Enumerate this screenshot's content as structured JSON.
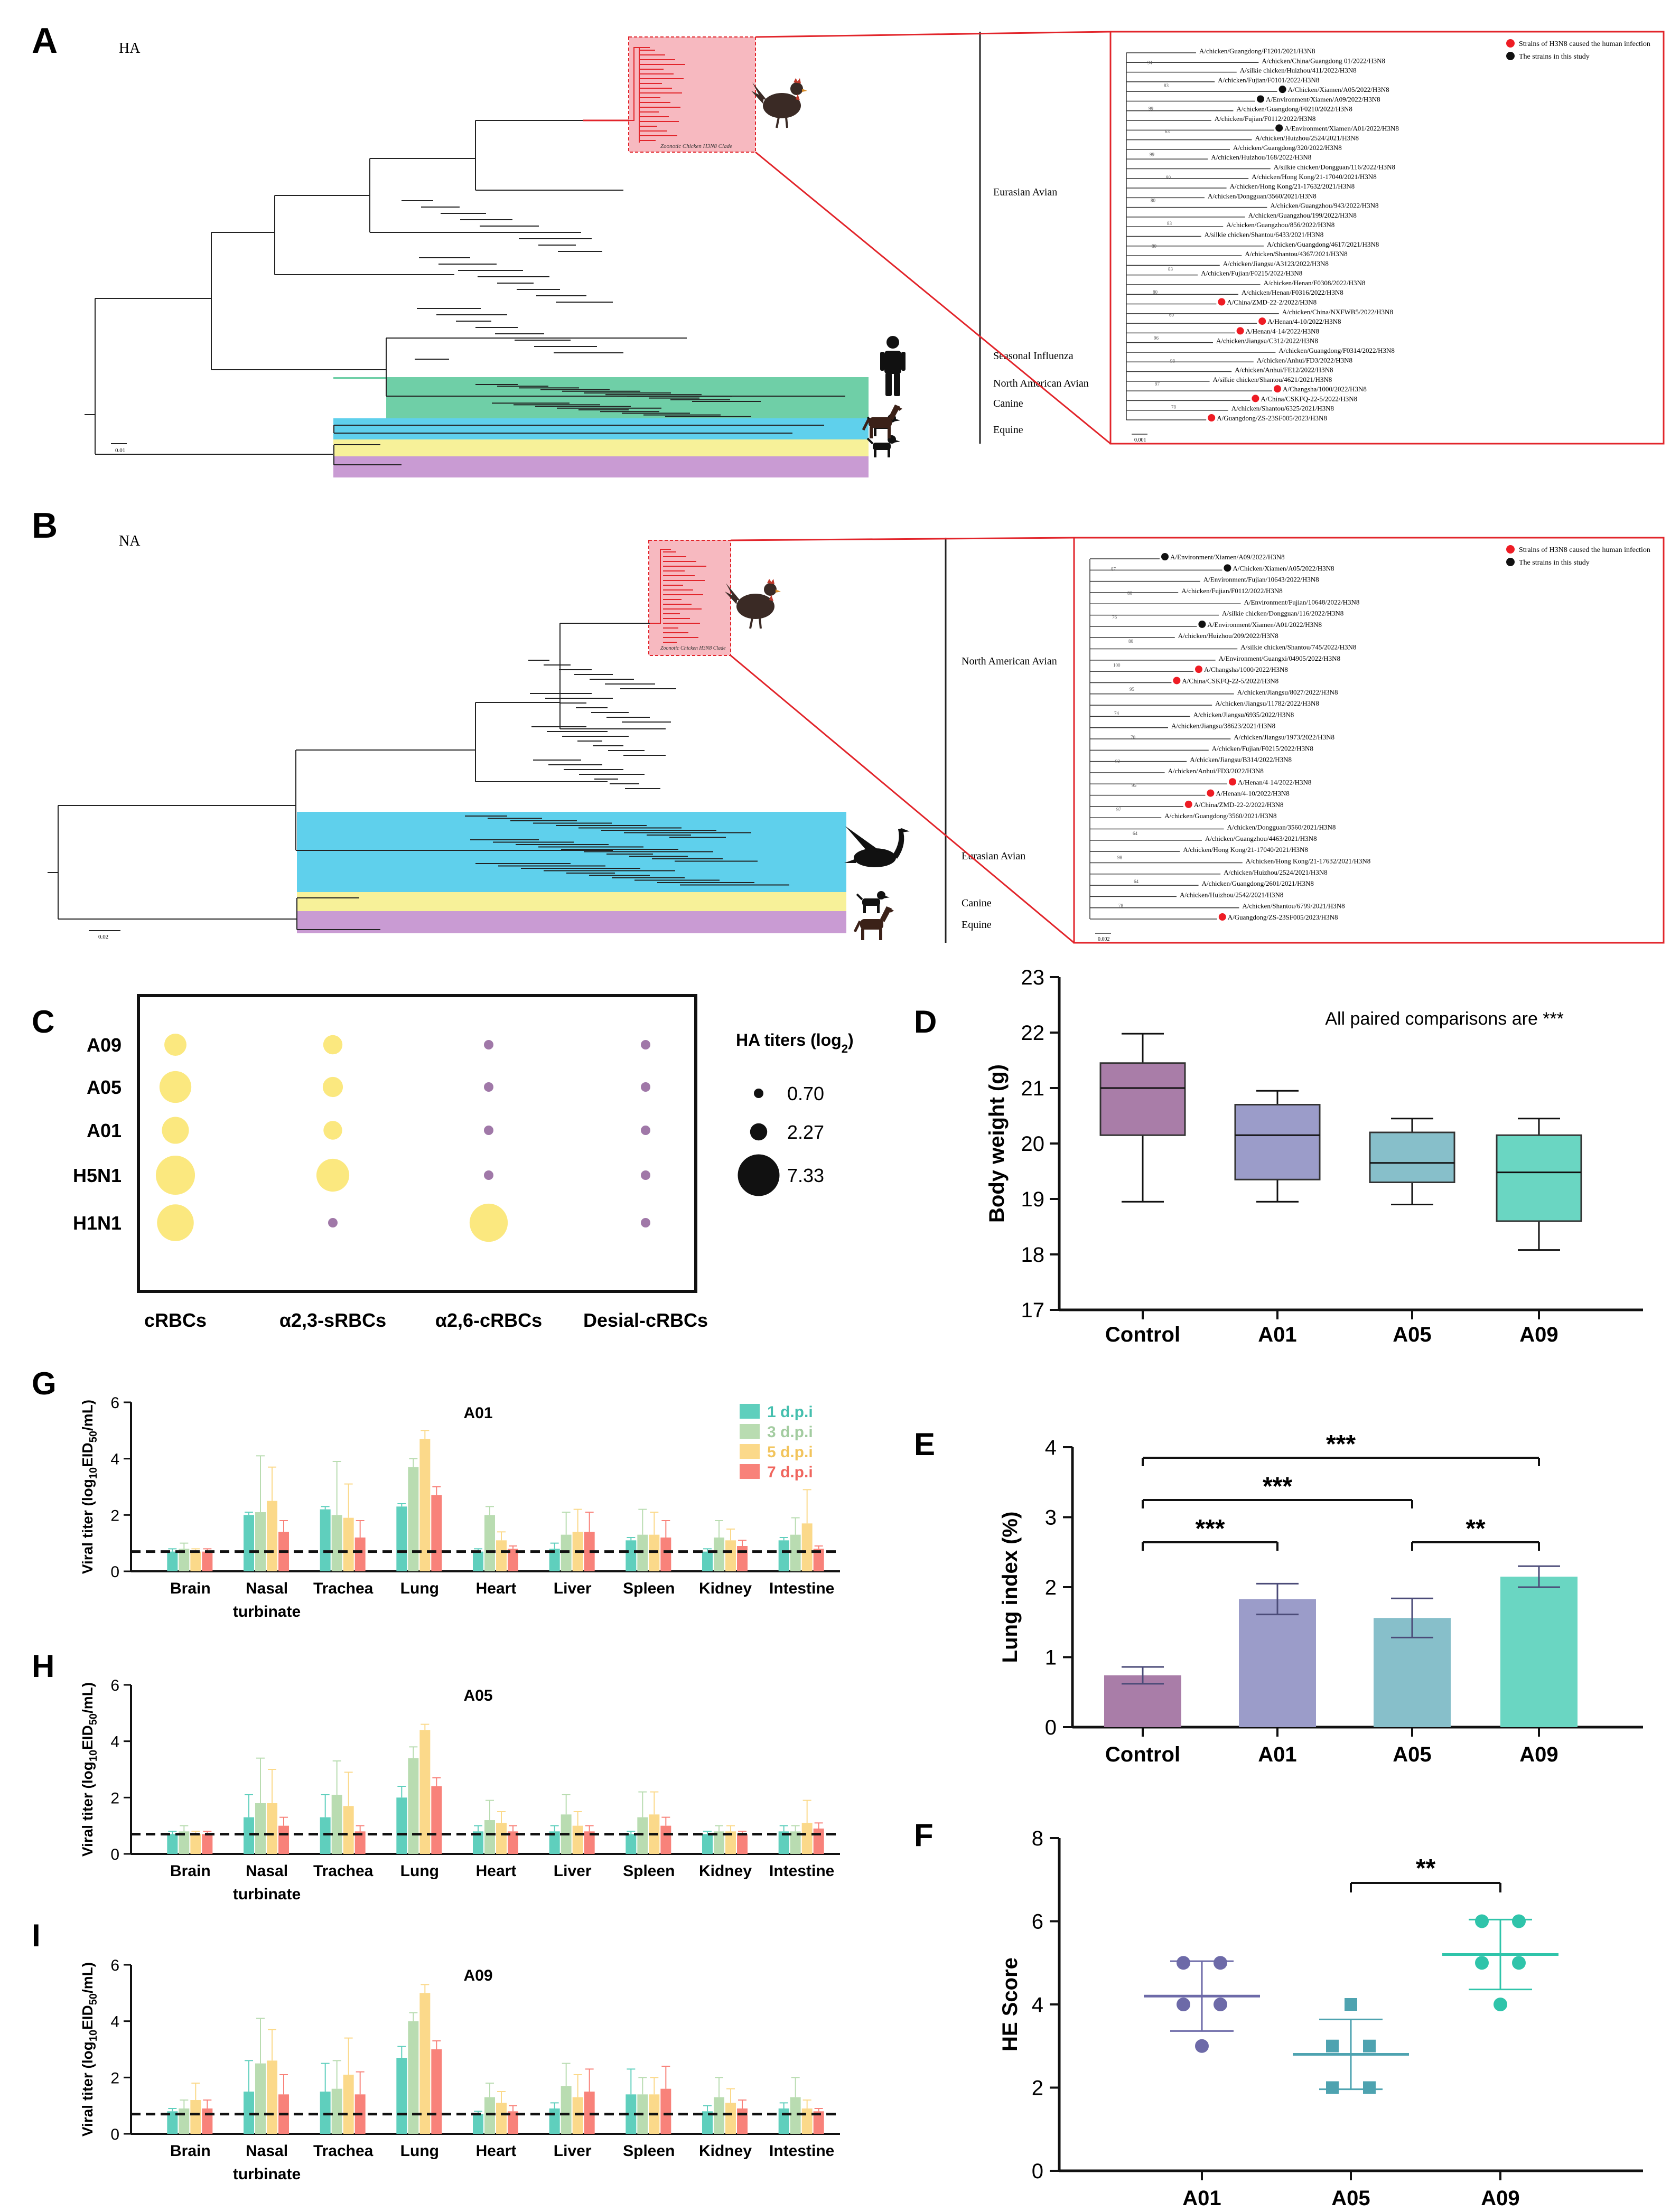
{
  "colors": {
    "avian_pink": "#f7b9c0",
    "seasonal_green": "#6fcfa7",
    "north_american_blue": "#5fd0ec",
    "canine_yellow": "#f7f199",
    "equine_purple": "#c99bd3",
    "highlight_red": "#e2252b",
    "human_dot": "#ee1c24",
    "study_dot": "#111111",
    "hemag_yellow": "#fbe87f",
    "no_hemag_purple": "#a078a8",
    "control": "#a97da8",
    "a01": "#9b9cc9",
    "a05": "#87bfca",
    "a09": "#6ad6c2",
    "dpi1": "#5fcfbd",
    "dpi3": "#b9dcb1",
    "dpi5": "#fbd98a",
    "dpi7": "#f8827a"
  },
  "panel_a": {
    "letter": "A",
    "gene": "HA",
    "clade_label": "Zoonotic Chicken H3N8 Clade",
    "scale": "0.01",
    "lineages": [
      "Eurasian Avian",
      "Seasonal Influenza",
      "North American Avian",
      "Canine",
      "Equine"
    ],
    "legend": {
      "human": "Strains of H3N8 caused the human infection",
      "study": "The strains in this study"
    },
    "inset_scale": "0.001",
    "inset_bootstraps": [
      "94",
      "83",
      "99",
      "63",
      "99",
      "80",
      "80",
      "83",
      "80",
      "83",
      "80",
      "69",
      "96",
      "98",
      "97",
      "78"
    ],
    "inset_strains": [
      {
        "name": "A/chicken/Guangdong/F1201/2021/H3N8",
        "mark": ""
      },
      {
        "name": "A/chicken/China/Guangdong 01/2022/H3N8",
        "mark": ""
      },
      {
        "name": "A/silkie chicken/Huizhou/411/2022/H3N8",
        "mark": ""
      },
      {
        "name": "A/chicken/Fujian/F0101/2022/H3N8",
        "mark": ""
      },
      {
        "name": "A/Chicken/Xiamen/A05/2022/H3N8",
        "mark": "study"
      },
      {
        "name": "A/Environment/Xiamen/A09/2022/H3N8",
        "mark": "study"
      },
      {
        "name": "A/chicken/Guangdong/F0210/2022/H3N8",
        "mark": ""
      },
      {
        "name": "A/chicken/Fujian/F0112/2022/H3N8",
        "mark": ""
      },
      {
        "name": "A/Environment/Xiamen/A01/2022/H3N8",
        "mark": "study"
      },
      {
        "name": "A/chicken/Huizhou/2524/2021/H3N8",
        "mark": ""
      },
      {
        "name": "A/chicken/Guangdong/320/2022/H3N8",
        "mark": ""
      },
      {
        "name": "A/chicken/Huizhou/168/2022/H3N8",
        "mark": ""
      },
      {
        "name": "A/silkie chicken/Dongguan/116/2022/H3N8",
        "mark": ""
      },
      {
        "name": "A/chicken/Hong Kong/21-17040/2021/H3N8",
        "mark": ""
      },
      {
        "name": "A/chicken/Hong Kong/21-17632/2021/H3N8",
        "mark": ""
      },
      {
        "name": "A/chicken/Dongguan/3560/2021/H3N8",
        "mark": ""
      },
      {
        "name": "A/chicken/Guangzhou/943/2022/H3N8",
        "mark": ""
      },
      {
        "name": "A/chicken/Guangzhou/199/2022/H3N8",
        "mark": ""
      },
      {
        "name": "A/chicken/Guangzhou/856/2022/H3N8",
        "mark": ""
      },
      {
        "name": "A/silkie chicken/Shantou/6433/2021/H3N8",
        "mark": ""
      },
      {
        "name": "A/chicken/Guangdong/4617/2021/H3N8",
        "mark": ""
      },
      {
        "name": "A/chicken/Shantou/4367/2021/H3N8",
        "mark": ""
      },
      {
        "name": "A/chicken/Jiangsu/A3123/2022/H3N8",
        "mark": ""
      },
      {
        "name": "A/chicken/Fujian/F0215/2022/H3N8",
        "mark": ""
      },
      {
        "name": "A/chicken/Henan/F0308/2022/H3N8",
        "mark": ""
      },
      {
        "name": "A/chicken/Henan/F0316/2022/H3N8",
        "mark": ""
      },
      {
        "name": "A/China/ZMD-22-2/2022/H3N8",
        "mark": "human"
      },
      {
        "name": "A/chicken/China/NXFWB5/2022/H3N8",
        "mark": ""
      },
      {
        "name": "A/Henan/4-10/2022/H3N8",
        "mark": "human"
      },
      {
        "name": "A/Henan/4-14/2022/H3N8",
        "mark": "human"
      },
      {
        "name": "A/chicken/Jiangsu/C312/2022/H3N8",
        "mark": ""
      },
      {
        "name": "A/chicken/Guangdong/F0314/2022/H3N8",
        "mark": ""
      },
      {
        "name": "A/chicken/Anhui/FD3/2022/H3N8",
        "mark": ""
      },
      {
        "name": "A/chicken/Anhui/FE12/2022/H3N8",
        "mark": ""
      },
      {
        "name": "A/silkie chicken/Shantou/4621/2021/H3N8",
        "mark": ""
      },
      {
        "name": "A/Changsha/1000/2022/H3N8",
        "mark": "human"
      },
      {
        "name": "A/China/CSKFQ-22-5/2022/H3N8",
        "mark": "human"
      },
      {
        "name": "A/chicken/Shantou/6325/2021/H3N8",
        "mark": ""
      },
      {
        "name": "A/Guangdong/ZS-23SF005/2023/H3N8",
        "mark": "human"
      }
    ]
  },
  "panel_b": {
    "letter": "B",
    "gene": "NA",
    "clade_label": "Zoonotic Chicken H3N8 Clade",
    "scale": "0.02",
    "lineages": [
      "North American Avian",
      "Eurasian Avian",
      "Canine",
      "Equine"
    ],
    "legend": {
      "human": "Strains of H3N8 caused the human infection",
      "study": "The strains in this study"
    },
    "inset_scale": "0.002",
    "inset_bootstraps": [
      "87",
      "80",
      "76",
      "80",
      "100",
      "95",
      "74",
      "70",
      "92",
      "95",
      "97",
      "64",
      "98",
      "64",
      "78"
    ],
    "inset_strains": [
      {
        "name": "A/Environment/Xiamen/A09/2022/H3N8",
        "mark": "study"
      },
      {
        "name": "A/Chicken/Xiamen/A05/2022/H3N8",
        "mark": "study"
      },
      {
        "name": "A/Environment/Fujian/10643/2022/H3N8",
        "mark": ""
      },
      {
        "name": "A/chicken/Fujian/F0112/2022/H3N8",
        "mark": ""
      },
      {
        "name": "A/Environment/Fujian/10648/2022/H3N8",
        "mark": ""
      },
      {
        "name": "A/silkie chicken/Dongguan/116/2022/H3N8",
        "mark": ""
      },
      {
        "name": "A/Environment/Xiamen/A01/2022/H3N8",
        "mark": "study"
      },
      {
        "name": "A/chicken/Huizhou/209/2022/H3N8",
        "mark": ""
      },
      {
        "name": "A/silkie chicken/Shantou/745/2022/H3N8",
        "mark": ""
      },
      {
        "name": "A/Environment/Guangxi/04905/2022/H3N8",
        "mark": ""
      },
      {
        "name": "A/Changsha/1000/2022/H3N8",
        "mark": "human"
      },
      {
        "name": "A/China/CSKFQ-22-5/2022/H3N8",
        "mark": "human"
      },
      {
        "name": "A/chicken/Jiangsu/8027/2022/H3N8",
        "mark": ""
      },
      {
        "name": "A/chicken/Jiangsu/11782/2022/H3N8",
        "mark": ""
      },
      {
        "name": "A/chicken/Jiangsu/6935/2022/H3N8",
        "mark": ""
      },
      {
        "name": "A/chicken/Jiangsu/38623/2021/H3N8",
        "mark": ""
      },
      {
        "name": "A/chicken/Jiangsu/1973/2022/H3N8",
        "mark": ""
      },
      {
        "name": "A/chicken/Fujian/F0215/2022/H3N8",
        "mark": ""
      },
      {
        "name": "A/chicken/Jiangsu/B314/2022/H3N8",
        "mark": ""
      },
      {
        "name": "A/chicken/Anhui/FD3/2022/H3N8",
        "mark": ""
      },
      {
        "name": "A/Henan/4-14/2022/H3N8",
        "mark": "human"
      },
      {
        "name": "A/Henan/4-10/2022/H3N8",
        "mark": "human"
      },
      {
        "name": "A/China/ZMD-22-2/2022/H3N8",
        "mark": "human"
      },
      {
        "name": "A/chicken/Guangdong/3560/2021/H3N8",
        "mark": ""
      },
      {
        "name": "A/chicken/Dongguan/3560/2021/H3N8",
        "mark": ""
      },
      {
        "name": "A/chicken/Guangzhou/4463/2021/H3N8",
        "mark": ""
      },
      {
        "name": "A/chicken/Hong Kong/21-17040/2021/H3N8",
        "mark": ""
      },
      {
        "name": "A/chicken/Hong Kong/21-17632/2021/H3N8",
        "mark": ""
      },
      {
        "name": "A/chicken/Huizhou/2524/2021/H3N8",
        "mark": ""
      },
      {
        "name": "A/chicken/Guangdong/2601/2021/H3N8",
        "mark": ""
      },
      {
        "name": "A/chicken/Huizhou/2542/2021/H3N8",
        "mark": ""
      },
      {
        "name": "A/chicken/Shantou/6799/2021/H3N8",
        "mark": ""
      },
      {
        "name": "A/Guangdong/ZS-23SF005/2023/H3N8",
        "mark": "human"
      }
    ]
  },
  "chart_data": [
    {
      "panel": "C",
      "type": "scatter",
      "subtype": "bubble",
      "title": "",
      "legend_title": "HA titers (log2)",
      "legend_sizes": [
        0.7,
        2.27,
        7.33
      ],
      "rows": [
        "A09",
        "A05",
        "A01",
        "H5N1",
        "H1N1"
      ],
      "columns": [
        "cRBCs",
        "α2,3-sRBCs",
        "α2,6-cRBCs",
        "Desial-cRBCs"
      ],
      "values": [
        [
          3.3,
          2.7,
          0.7,
          0.7
        ],
        [
          5.3,
          2.9,
          0.7,
          0.7
        ],
        [
          4.3,
          2.6,
          0.7,
          0.7
        ],
        [
          6.8,
          5.5,
          0.7,
          0.7
        ],
        [
          6.3,
          0.7,
          6.6,
          0.7
        ]
      ]
    },
    {
      "panel": "D",
      "type": "box",
      "ylabel": "Body weight (g)",
      "ylim": [
        17,
        23
      ],
      "yticks": [
        17,
        18,
        19,
        20,
        21,
        22,
        23
      ],
      "annotation": "All paired comparisons are ***",
      "categories": [
        "Control",
        "A01",
        "A05",
        "A09"
      ],
      "boxes": [
        {
          "min": 18.95,
          "q1": 20.15,
          "median": 21.0,
          "q3": 21.45,
          "max": 21.98
        },
        {
          "min": 18.95,
          "q1": 19.35,
          "median": 20.15,
          "q3": 20.7,
          "max": 20.95
        },
        {
          "min": 18.9,
          "q1": 19.3,
          "median": 19.65,
          "q3": 20.2,
          "max": 20.45
        },
        {
          "min": 18.08,
          "q1": 18.6,
          "median": 19.48,
          "q3": 20.15,
          "max": 20.45
        }
      ]
    },
    {
      "panel": "E",
      "type": "bar",
      "ylabel": "Lung index (%)",
      "ylim": [
        0,
        4
      ],
      "yticks": [
        0,
        1,
        2,
        3,
        4
      ],
      "categories": [
        "Control",
        "A01",
        "A05",
        "A09"
      ],
      "values": [
        0.74,
        1.83,
        1.56,
        2.15
      ],
      "errors": [
        0.12,
        0.22,
        0.28,
        0.15
      ],
      "significance": [
        {
          "from": 0,
          "to": 3,
          "label": "***"
        },
        {
          "from": 0,
          "to": 2,
          "label": "***"
        },
        {
          "from": 0,
          "to": 1,
          "label": "***"
        },
        {
          "from": 2,
          "to": 3,
          "label": "**"
        }
      ]
    },
    {
      "panel": "F",
      "type": "scatter",
      "ylabel": "HE Score",
      "ylim": [
        0,
        8
      ],
      "yticks": [
        0,
        2,
        4,
        6,
        8
      ],
      "categories": [
        "A01",
        "A05",
        "A09"
      ],
      "points": [
        [
          5,
          5,
          4,
          4,
          3
        ],
        [
          4,
          3,
          3,
          2,
          2
        ],
        [
          6,
          6,
          5,
          5,
          4
        ]
      ],
      "means": [
        4.2,
        2.8,
        5.2
      ],
      "sd": [
        0.84,
        0.84,
        0.84
      ],
      "significance": [
        {
          "from": 1,
          "to": 2,
          "label": "**"
        }
      ]
    },
    {
      "panel": "G",
      "type": "bar",
      "title": "A01",
      "ylabel_main": "Viral titer (log",
      "ylabel_sub1": "10",
      "ylabel_mid": "EID",
      "ylabel_sub2": "50",
      "ylabel_end": "/mL)",
      "ylim": [
        0,
        6
      ],
      "yticks": [
        0,
        2,
        4,
        6
      ],
      "threshold": 0.7,
      "categories": [
        "Brain",
        "Nasal turbinate",
        "Trachea",
        "Lung",
        "Heart",
        "Liver",
        "Spleen",
        "Kidney",
        "Intestine"
      ],
      "series": [
        {
          "name": "1 d.p.i",
          "values": [
            0.7,
            2.0,
            2.2,
            2.3,
            0.7,
            0.8,
            1.1,
            0.7,
            1.1
          ],
          "errors": [
            0.1,
            0.1,
            0.1,
            0.1,
            0.1,
            0.2,
            0.1,
            0.1,
            0.1
          ]
        },
        {
          "name": "3 d.p.i",
          "values": [
            0.8,
            2.1,
            2.0,
            3.7,
            2.0,
            1.3,
            1.3,
            1.2,
            1.3
          ],
          "errors": [
            0.2,
            2.0,
            1.9,
            0.3,
            0.3,
            0.8,
            0.9,
            0.6,
            0.6
          ]
        },
        {
          "name": "5 d.p.i",
          "values": [
            0.7,
            2.5,
            1.9,
            4.7,
            1.1,
            1.4,
            1.3,
            1.1,
            1.7
          ],
          "errors": [
            0.1,
            1.2,
            1.2,
            0.3,
            0.3,
            0.8,
            0.8,
            0.4,
            1.2
          ]
        },
        {
          "name": "7 d.p.i",
          "values": [
            0.7,
            1.4,
            1.2,
            2.7,
            0.8,
            1.4,
            1.2,
            0.9,
            0.8
          ],
          "errors": [
            0.1,
            0.4,
            0.6,
            0.3,
            0.1,
            0.7,
            0.6,
            0.2,
            0.1
          ]
        }
      ]
    },
    {
      "panel": "H",
      "type": "bar",
      "title": "A05",
      "ylabel_main": "Viral titer (log",
      "ylabel_sub1": "10",
      "ylabel_mid": "EID",
      "ylabel_sub2": "50",
      "ylabel_end": "/mL)",
      "ylim": [
        0,
        6
      ],
      "yticks": [
        0,
        2,
        4,
        6
      ],
      "threshold": 0.7,
      "categories": [
        "Brain",
        "Nasal turbinate",
        "Trachea",
        "Lung",
        "Heart",
        "Liver",
        "Spleen",
        "Kidney",
        "Intestine"
      ],
      "series": [
        {
          "name": "1 d.p.i",
          "values": [
            0.7,
            1.3,
            1.3,
            2.0,
            0.8,
            0.8,
            0.7,
            0.7,
            0.8
          ],
          "errors": [
            0.1,
            0.8,
            0.8,
            0.4,
            0.2,
            0.2,
            0.1,
            0.1,
            0.2
          ]
        },
        {
          "name": "3 d.p.i",
          "values": [
            0.8,
            1.8,
            2.1,
            3.4,
            1.2,
            1.4,
            1.3,
            0.8,
            0.8
          ],
          "errors": [
            0.2,
            1.6,
            1.2,
            0.4,
            0.7,
            0.7,
            0.9,
            0.2,
            0.2
          ]
        },
        {
          "name": "5 d.p.i",
          "values": [
            0.7,
            1.8,
            1.7,
            4.4,
            1.1,
            1.0,
            1.4,
            0.8,
            1.1
          ],
          "errors": [
            0.1,
            1.2,
            1.2,
            0.2,
            0.4,
            0.5,
            0.8,
            0.2,
            0.8
          ]
        },
        {
          "name": "7 d.p.i",
          "values": [
            0.7,
            1.0,
            0.8,
            2.4,
            0.8,
            0.8,
            1.0,
            0.7,
            0.9
          ],
          "errors": [
            0.1,
            0.3,
            0.2,
            0.3,
            0.2,
            0.2,
            0.3,
            0.1,
            0.2
          ]
        }
      ]
    },
    {
      "panel": "I",
      "type": "bar",
      "title": "A09",
      "ylabel_main": "Viral titer (log",
      "ylabel_sub1": "10",
      "ylabel_mid": "EID",
      "ylabel_sub2": "50",
      "ylabel_end": "/mL)",
      "ylim": [
        0,
        6
      ],
      "yticks": [
        0,
        2,
        4,
        6
      ],
      "threshold": 0.7,
      "categories": [
        "Brain",
        "Nasal turbinate",
        "Trachea",
        "Lung",
        "Heart",
        "Liver",
        "Spleen",
        "Kidney",
        "Intestine"
      ],
      "series": [
        {
          "name": "1 d.p.i",
          "values": [
            0.8,
            1.5,
            1.5,
            2.7,
            0.7,
            0.9,
            1.4,
            0.8,
            0.9
          ],
          "errors": [
            0.1,
            1.1,
            1.0,
            0.4,
            0.1,
            0.2,
            0.9,
            0.2,
            0.2
          ]
        },
        {
          "name": "3 d.p.i",
          "values": [
            0.9,
            2.5,
            1.6,
            4.0,
            1.3,
            1.7,
            1.4,
            1.3,
            1.3
          ],
          "errors": [
            0.3,
            1.6,
            1.0,
            0.3,
            0.5,
            0.8,
            0.6,
            0.7,
            0.7
          ]
        },
        {
          "name": "5 d.p.i",
          "values": [
            1.2,
            2.6,
            2.1,
            5.0,
            1.1,
            1.3,
            1.4,
            1.1,
            0.9
          ],
          "errors": [
            0.6,
            1.1,
            1.3,
            0.3,
            0.4,
            0.8,
            0.6,
            0.5,
            0.3
          ]
        },
        {
          "name": "7 d.p.i",
          "values": [
            0.9,
            1.4,
            1.4,
            3.0,
            0.8,
            1.5,
            1.6,
            0.9,
            0.8
          ],
          "errors": [
            0.3,
            0.7,
            0.8,
            0.3,
            0.2,
            0.8,
            0.8,
            0.3,
            0.1
          ]
        }
      ]
    }
  ]
}
